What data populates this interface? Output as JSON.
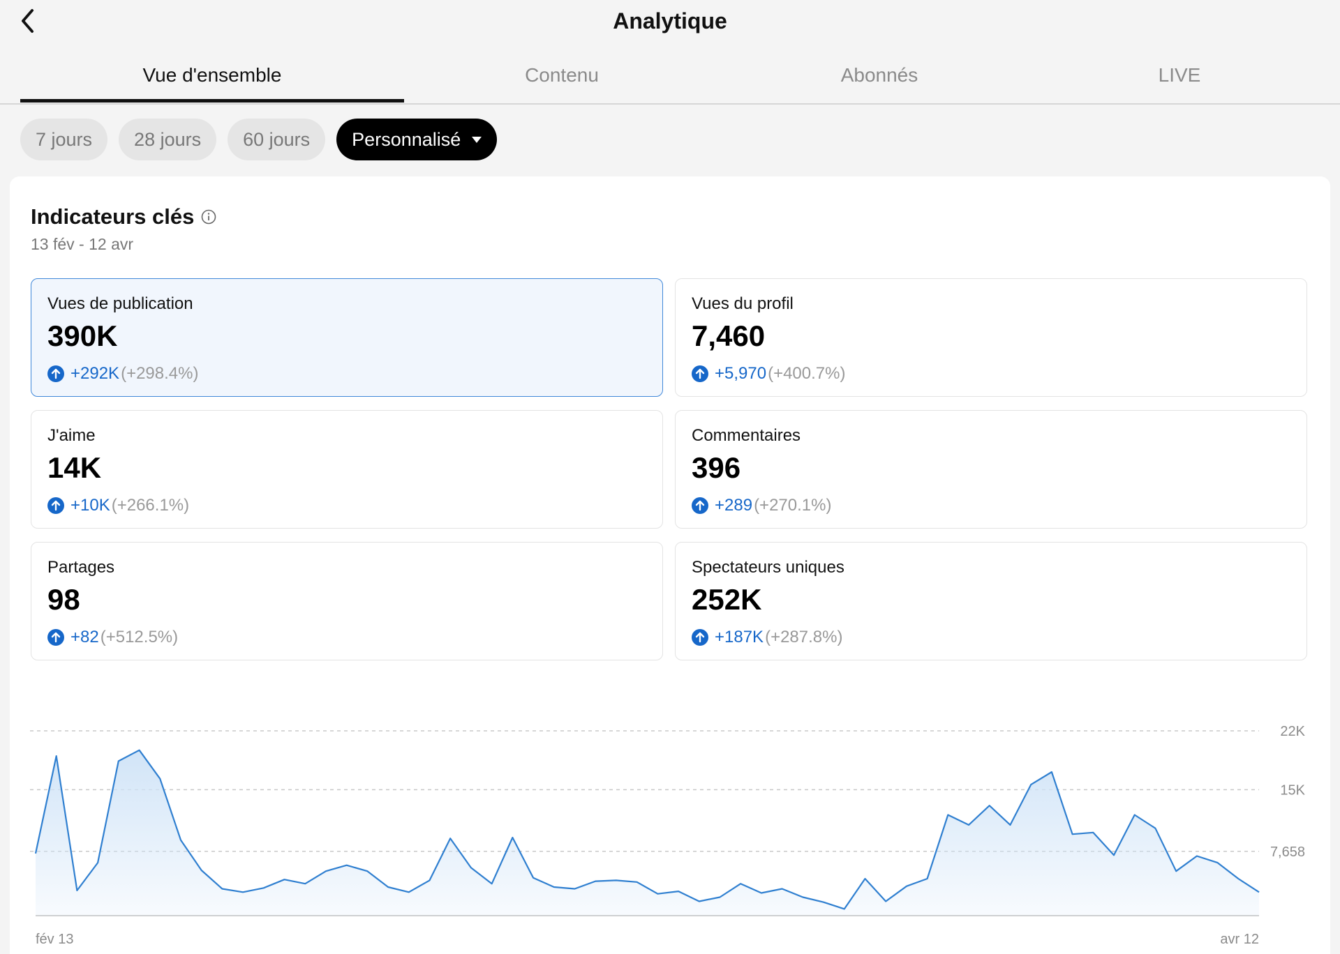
{
  "header": {
    "title": "Analytique",
    "back_icon": "chevron-left-icon"
  },
  "tabs": [
    {
      "label": "Vue d'ensemble",
      "active": true
    },
    {
      "label": "Contenu",
      "active": false
    },
    {
      "label": "Abonnés",
      "active": false
    },
    {
      "label": "LIVE",
      "active": false
    }
  ],
  "periods": [
    {
      "label": "7 jours",
      "selected": false
    },
    {
      "label": "28 jours",
      "selected": false
    },
    {
      "label": "60 jours",
      "selected": false
    },
    {
      "label": "Personnalisé",
      "selected": true
    }
  ],
  "key_metrics": {
    "title": "Indicateurs clés",
    "date_range": "13 fév - 12 avr",
    "items": [
      {
        "label": "Vues de publication",
        "value": "390K",
        "delta": "+292K",
        "pct": "(+298.4%)",
        "selected": true
      },
      {
        "label": "Vues du profil",
        "value": "7,460",
        "delta": "+5,970",
        "pct": "(+400.7%)",
        "selected": false
      },
      {
        "label": "J'aime",
        "value": "14K",
        "delta": "+10K",
        "pct": "(+266.1%)",
        "selected": false
      },
      {
        "label": "Commentaires",
        "value": "396",
        "delta": "+289",
        "pct": "(+270.1%)",
        "selected": false
      },
      {
        "label": "Partages",
        "value": "98",
        "delta": "+82",
        "pct": "(+512.5%)",
        "selected": false
      },
      {
        "label": "Spectateurs uniques",
        "value": "252K",
        "delta": "+187K",
        "pct": "(+287.8%)",
        "selected": false
      }
    ]
  },
  "colors": {
    "accent": "#1667c9",
    "line": "#2f7fd0",
    "fill": "#cfe3f7",
    "selected_bg": "#f1f6fd"
  },
  "chart_data": {
    "type": "area",
    "series_of": "Vues de publication",
    "x_start_label": "fév 13",
    "x_end_label": "avr 12",
    "yticks": [
      {
        "value": 22000,
        "label": "22K"
      },
      {
        "value": 15000,
        "label": "15K"
      },
      {
        "value": 7658,
        "label": "7,658"
      }
    ],
    "ylim": [
      0,
      22000
    ],
    "grid": true,
    "values": [
      7400,
      19000,
      3000,
      6300,
      18400,
      19700,
      16300,
      9000,
      5400,
      3200,
      2800,
      3300,
      4300,
      3800,
      5300,
      6000,
      5300,
      3400,
      2800,
      4200,
      9200,
      5700,
      3800,
      9300,
      4500,
      3400,
      3200,
      4100,
      4200,
      4000,
      2600,
      2900,
      1700,
      2200,
      3800,
      2700,
      3200,
      2200,
      1600,
      800,
      4400,
      1700,
      3500,
      4400,
      12000,
      10800,
      13100,
      10800,
      15600,
      17100,
      9700,
      9900,
      7200,
      12000,
      10400,
      5300,
      7100,
      6300,
      4400,
      2800
    ]
  }
}
